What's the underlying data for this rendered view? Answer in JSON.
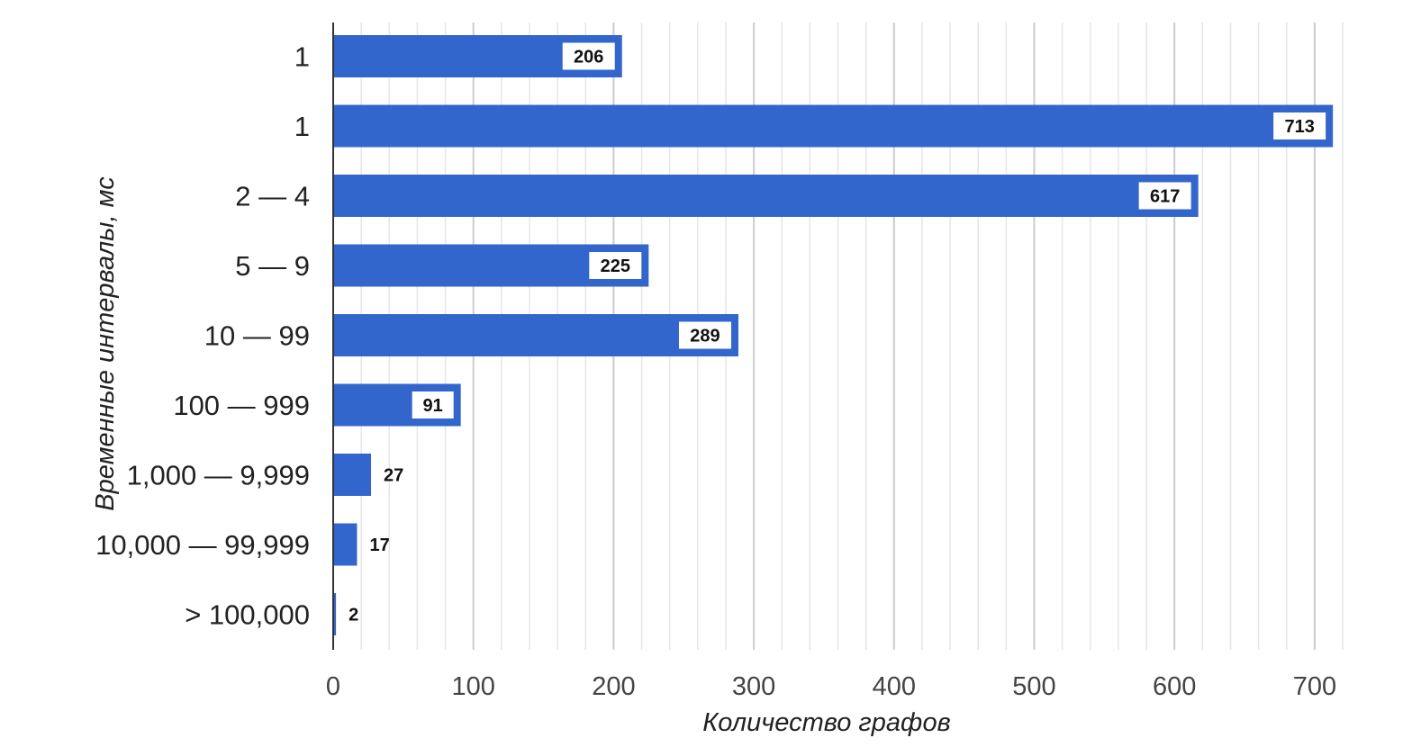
{
  "chart_data": {
    "type": "bar",
    "orientation": "horizontal",
    "categories": [
      "1",
      "1",
      "2 — 4",
      "5 — 9",
      "10 — 99",
      "100 — 999",
      "1,000 — 9,999",
      "10,000 — 99,999",
      "> 100,000"
    ],
    "values": [
      206,
      713,
      617,
      225,
      289,
      91,
      27,
      17,
      2
    ],
    "data_labels": [
      "206",
      "713",
      "617",
      "225",
      "289",
      "91",
      "27",
      "17",
      "2"
    ],
    "xlabel": "Количество графов",
    "ylabel": "Временные интервалы, мс",
    "xlim": [
      0,
      735
    ],
    "xticks": [
      0,
      100,
      200,
      300,
      400,
      500,
      600,
      700
    ],
    "grid": "vertical, major and minor",
    "legend": "none",
    "bar_color": "#3366cc"
  }
}
